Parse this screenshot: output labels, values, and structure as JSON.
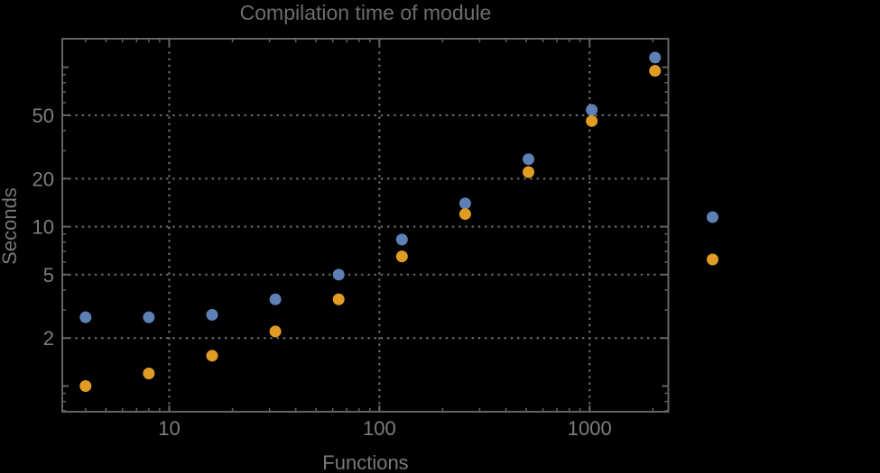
{
  "chart_data": {
    "type": "scatter",
    "title": "Compilation time of module",
    "xlabel": "Functions",
    "ylabel": "Seconds",
    "x_scale": "log",
    "y_scale": "log",
    "xlim": [
      3.1,
      2370
    ],
    "ylim": [
      0.69,
      151
    ],
    "x_tick_labels": [
      10,
      100,
      1000
    ],
    "y_tick_labels": [
      2,
      5,
      10,
      20,
      50
    ],
    "grid": "dotted gridlines at labeled ticks only",
    "legend_position": "right of plot, markers only (no visible label text)",
    "x": [
      4,
      8,
      16,
      32,
      64,
      128,
      256,
      512,
      1024,
      2048
    ],
    "series": [
      {
        "name": "blue",
        "color": "#5e81b5",
        "values": [
          2.7,
          2.7,
          2.8,
          3.5,
          5.0,
          8.3,
          14,
          26.5,
          54,
          115
        ]
      },
      {
        "name": "orange",
        "color": "#e19c24",
        "values": [
          1.0,
          1.2,
          1.55,
          2.2,
          3.5,
          6.5,
          12,
          22,
          46,
          95
        ]
      }
    ],
    "colors": {
      "background": "#000000",
      "frame": "#636363",
      "grid": "#6a6a6a",
      "tick_label": "#7e7e7e",
      "axis_label": "#787878",
      "title": "#6d6d6d"
    }
  }
}
